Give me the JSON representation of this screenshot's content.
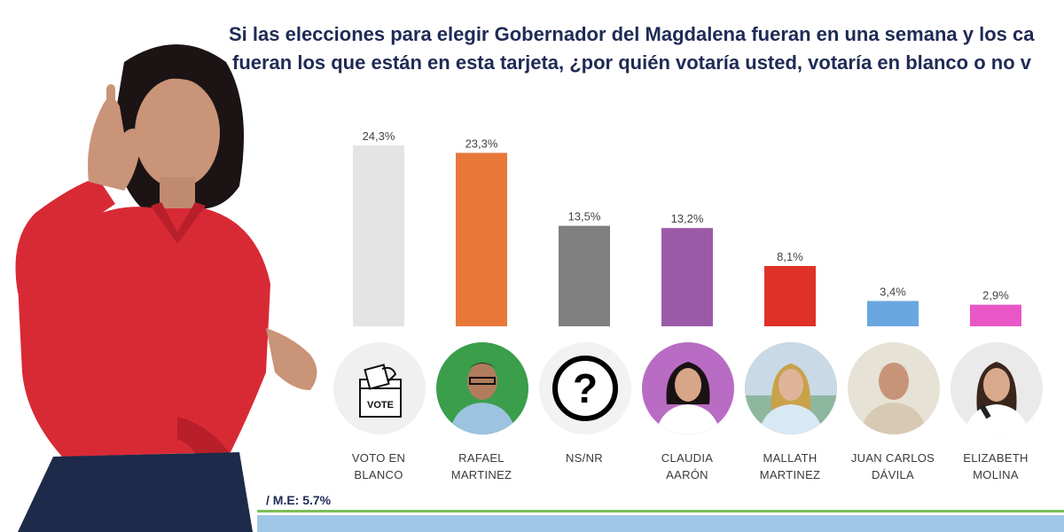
{
  "title_line1": "Si las elecciones para elegir Gobernador del Magdalena fueran en una semana y los ca",
  "title_line2": "fueran los que están en esta tarjeta, ¿por quién votaría usted, votaría en blanco o no v",
  "margin_of_error": "/ M.E: 5.7%",
  "icons": {
    "ballot_box_label": "VOTE",
    "question_mark": "?"
  },
  "colors": {
    "title": "#1f2a55",
    "footer_line": "#7bbf5a",
    "footer_band": "#9fc8e8"
  },
  "chart_data": {
    "type": "bar",
    "categories": [
      [
        "VOTO EN",
        "BLANCO"
      ],
      [
        "RAFAEL",
        "MARTINEZ"
      ],
      [
        "NS/NR"
      ],
      [
        "CLAUDIA",
        "AARÓN"
      ],
      [
        "MALLATH",
        "MARTINEZ"
      ],
      [
        "JUAN CARLOS",
        "DÁVILA"
      ],
      [
        "ELIZABETH",
        "MOLINA"
      ]
    ],
    "values": [
      24.3,
      23.3,
      13.5,
      13.2,
      8.1,
      3.4,
      2.9
    ],
    "value_labels": [
      "24,3%",
      "23,3%",
      "13,5%",
      "13,2%",
      "8,1%",
      "3,4%",
      "2,9%"
    ],
    "bar_colors": [
      "#e4e4e4",
      "#e8783a",
      "#808080",
      "#9b5aa8",
      "#e03128",
      "#6aa6e0",
      "#e956c6"
    ],
    "ylim": [
      0,
      24.3
    ],
    "grid": false,
    "legend": "none"
  }
}
